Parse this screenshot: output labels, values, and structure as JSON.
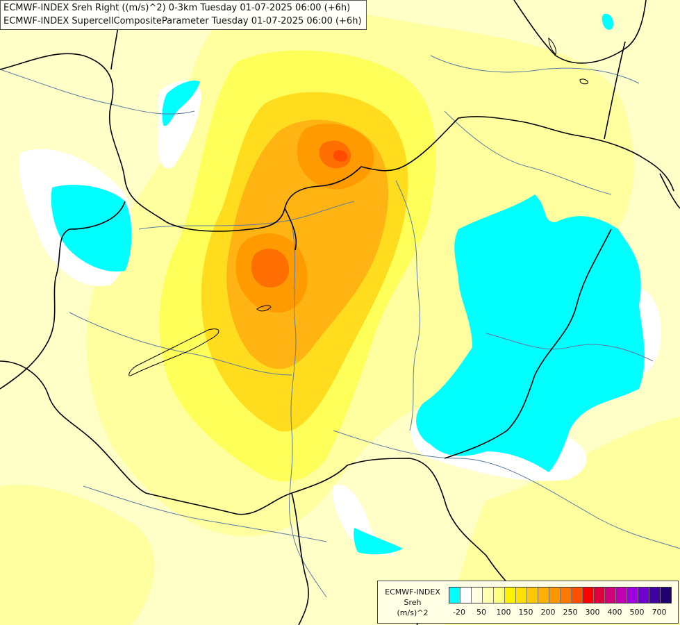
{
  "title": {
    "line1": "ECMWF-INDEX Sreh Right ((m/s)^2) 0-3km Tuesday 01-07-2025 06:00 (+6h)",
    "line2": "ECMWF-INDEX SupercellCompositeParameter Tuesday 01-07-2025 06:00 (+6h)"
  },
  "legend": {
    "source": "ECMWF-INDEX",
    "variable": "Sreh",
    "unit": "(m/s)^2",
    "colors": [
      "#00ffff",
      "#ffffff",
      "#ffffe0",
      "#ffffb0",
      "#ffff80",
      "#fff200",
      "#ffe000",
      "#ffc800",
      "#ffb000",
      "#ff9600",
      "#ff7800",
      "#ff5000",
      "#ff0000",
      "#e0003c",
      "#d00078",
      "#c000b0",
      "#a000e0",
      "#7000d0",
      "#4000a0",
      "#200070"
    ],
    "ticks": [
      "-20",
      "50",
      "100",
      "150",
      "200",
      "250",
      "300",
      "400",
      "500",
      "700"
    ]
  },
  "colors": {
    "land": "#ffffc8",
    "low": "#00ffff",
    "zero": "#ffffff",
    "border": "#000000",
    "river": "#5a7aa0"
  }
}
